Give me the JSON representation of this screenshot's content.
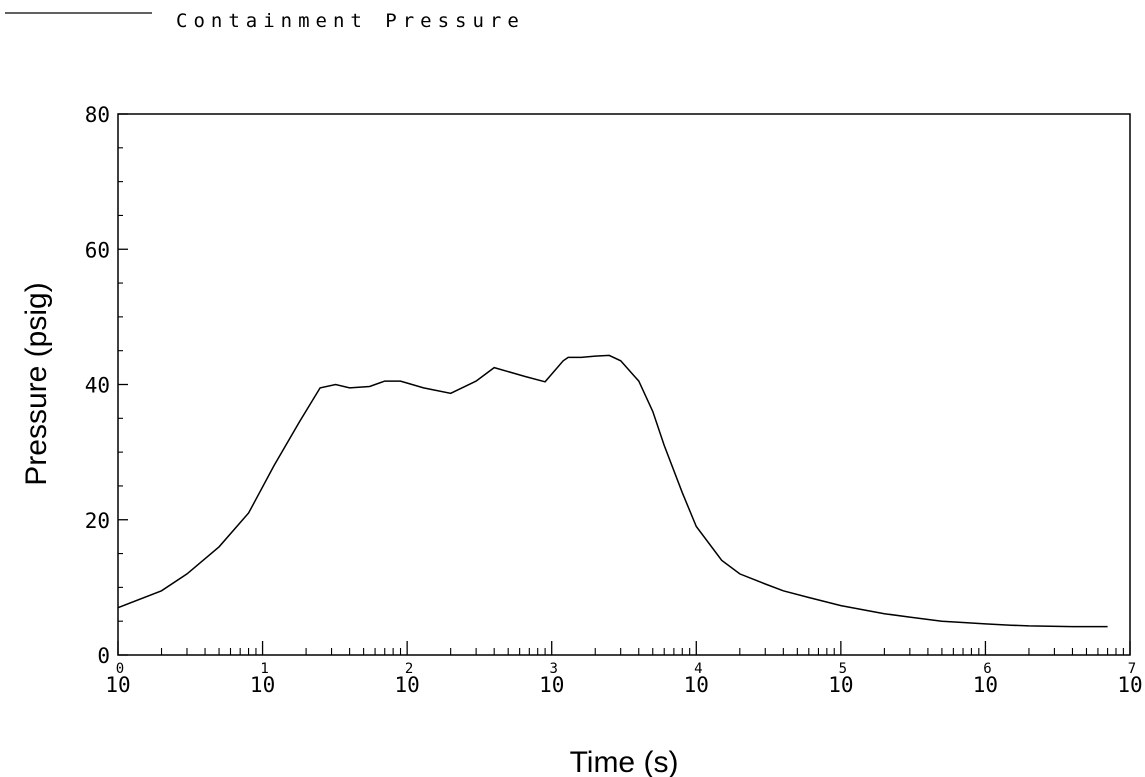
{
  "chart_data": {
    "type": "line",
    "xlabel": "Time (s)",
    "ylabel": "Pressure (psig)",
    "xscale": "log",
    "xlim": [
      1,
      10000000
    ],
    "ylim": [
      0,
      80
    ],
    "grid": false,
    "legend_position": "top-left",
    "x_ticks": [
      {
        "base": "10",
        "exp": "0"
      },
      {
        "base": "10",
        "exp": "1"
      },
      {
        "base": "10",
        "exp": "2"
      },
      {
        "base": "10",
        "exp": "3"
      },
      {
        "base": "10",
        "exp": "4"
      },
      {
        "base": "10",
        "exp": "5"
      },
      {
        "base": "10",
        "exp": "6"
      },
      {
        "base": "10",
        "exp": "7"
      }
    ],
    "y_ticks": [
      "0",
      "20",
      "40",
      "60",
      "80"
    ],
    "series": [
      {
        "name": "Containment Pressure",
        "color": "#000000",
        "x": [
          1,
          2,
          3,
          5,
          8,
          12,
          18,
          25,
          32,
          40,
          55,
          70,
          90,
          130,
          200,
          300,
          400,
          650,
          900,
          1200,
          1300,
          1600,
          2000,
          2500,
          3000,
          4000,
          5000,
          6000,
          8000,
          10000,
          15000,
          20000,
          30000,
          40000,
          60000,
          100000,
          150000,
          200000,
          300000,
          500000,
          700000,
          1000000,
          1500000,
          2000000,
          4000000,
          7000000
        ],
        "y": [
          7,
          9.5,
          12,
          16,
          21,
          28,
          34.5,
          39.5,
          40,
          39.5,
          39.7,
          40.5,
          40.5,
          39.5,
          38.7,
          40.5,
          42.5,
          41.2,
          40.4,
          43.5,
          44.0,
          44.0,
          44.2,
          44.3,
          43.5,
          40.5,
          36,
          31,
          24,
          19,
          14,
          12,
          10.5,
          9.5,
          8.5,
          7.3,
          6.6,
          6.1,
          5.6,
          5.0,
          4.8,
          4.6,
          4.4,
          4.3,
          4.2,
          4.2
        ]
      }
    ]
  }
}
